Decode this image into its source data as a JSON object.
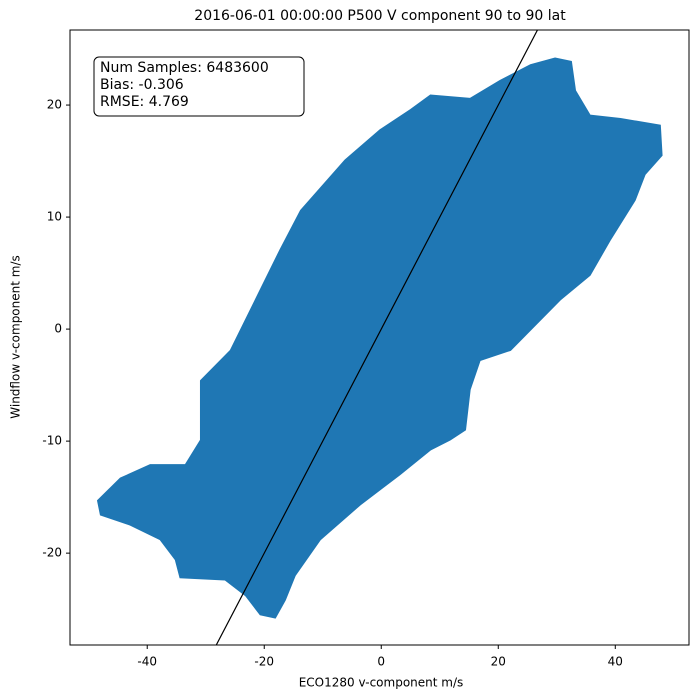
{
  "chart_data": {
    "type": "scatter",
    "title": "2016-06-01 00:00:00 P500 V component 90 to 90 lat",
    "x_label": "ECO1280 v-component m/s",
    "y_label": "Windflow v-component m/s",
    "annotation": [
      "Num Samples: 6483600",
      "Bias: -0.306",
      "RMSE: 4.769"
    ],
    "xlim": [
      -53.2,
      52.6
    ],
    "ylim": [
      -28.2,
      26.7
    ],
    "xticks": [
      -40,
      -20,
      0,
      20,
      40
    ],
    "yticks": [
      -20,
      -10,
      0,
      10,
      20
    ],
    "series": [
      {
        "color": "#1f77b4",
        "x": [
          29.7,
          32.5,
          33.2,
          35.7,
          40.9,
          47.7,
          48.0,
          45.1,
          43.4,
          39.1,
          35.7,
          30.6,
          25.5,
          22.1,
          16.9,
          15.2,
          14.4,
          11.8,
          8.4,
          3.2,
          -3.6,
          -10.4,
          -14.7,
          -16.4,
          -18.1,
          -20.7,
          -23.2,
          -26.7,
          -34.4,
          -35.2,
          -37.8,
          -42.9,
          -48.0,
          -48.5,
          -44.6,
          -39.5,
          -33.5,
          -30.9,
          -30.9,
          -25.8,
          -20.7,
          -17.3,
          -13.8,
          -6.2,
          -0.2,
          5.0,
          8.4,
          15.2,
          20.3,
          25.5
        ],
        "y": [
          24.2,
          23.9,
          21.3,
          19.1,
          18.8,
          18.2,
          15.5,
          13.8,
          11.5,
          7.9,
          4.8,
          2.6,
          -0.1,
          -1.9,
          -2.8,
          -5.4,
          -9.0,
          -9.9,
          -10.8,
          -13.0,
          -15.7,
          -18.8,
          -22.0,
          -24.2,
          -25.8,
          -25.5,
          -23.8,
          -22.4,
          -22.2,
          -20.6,
          -18.8,
          -17.5,
          -16.6,
          -15.3,
          -13.3,
          -12.1,
          -12.1,
          -9.9,
          -4.6,
          -1.9,
          3.5,
          7.1,
          10.6,
          15.1,
          17.8,
          19.6,
          20.9,
          20.6,
          22.2,
          23.6
        ]
      }
    ],
    "identity_line": {
      "color": "#000000",
      "x": [
        -28.2,
        26.7
      ],
      "y": [
        -28.2,
        26.7
      ]
    }
  }
}
